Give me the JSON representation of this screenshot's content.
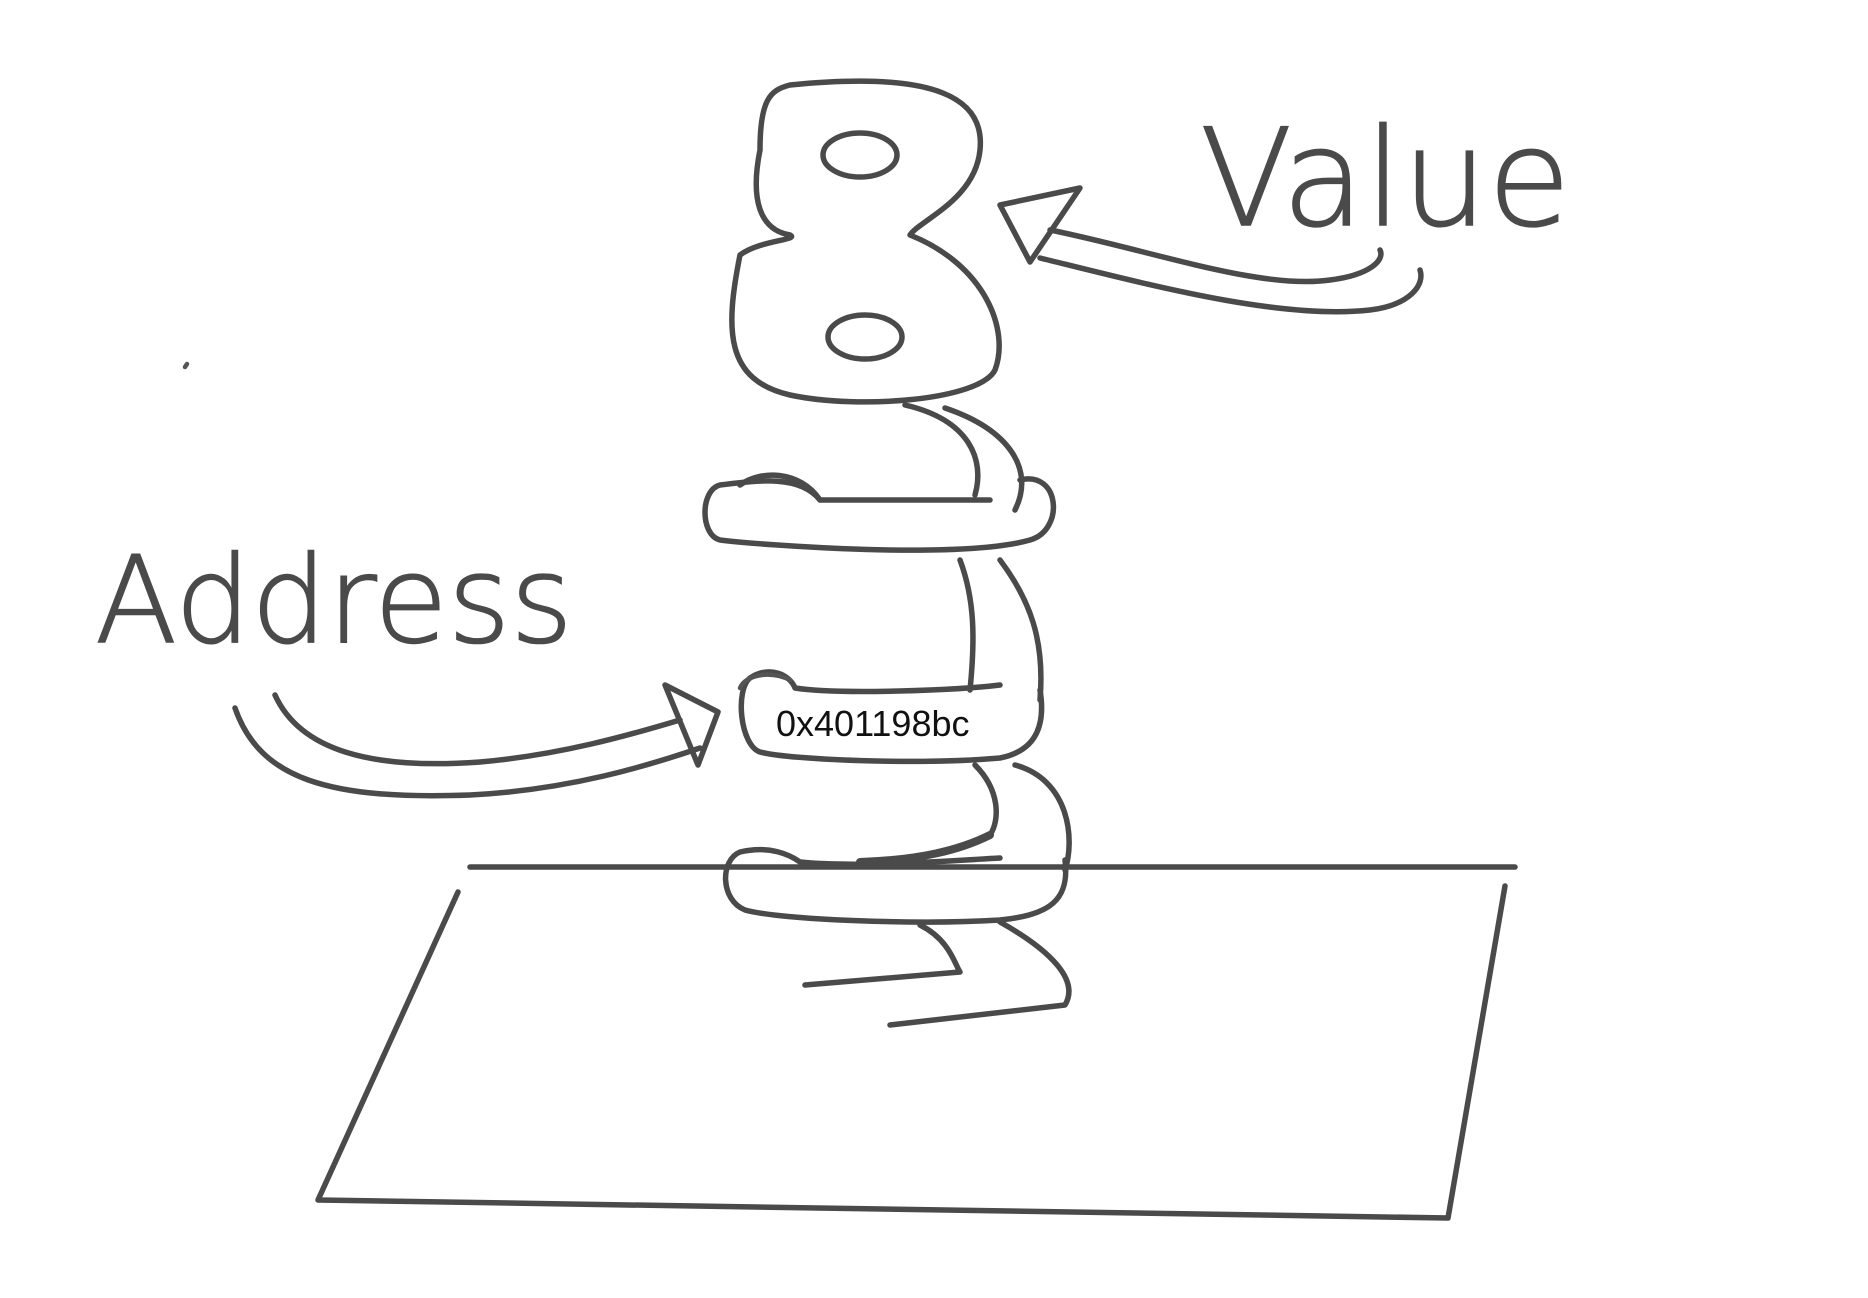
{
  "labels": {
    "value": "Value",
    "address": "Address",
    "address_value": "0x401198bc",
    "stored_value": "8"
  },
  "colors": {
    "ink": "#4a4a4a",
    "background": "#ffffff",
    "text": "#111111"
  }
}
